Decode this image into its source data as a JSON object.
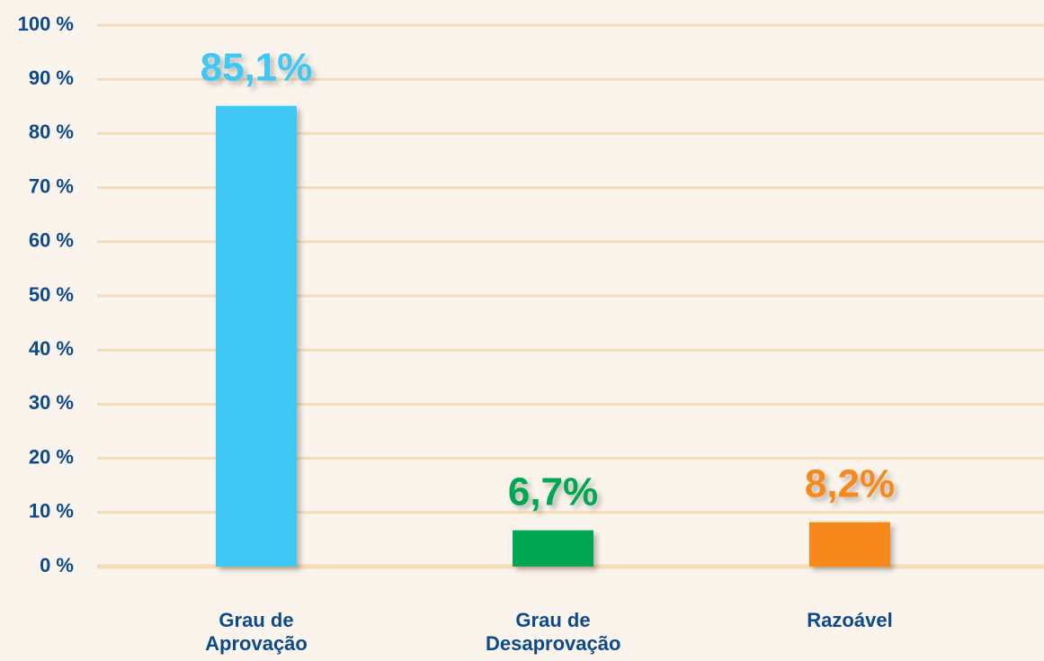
{
  "chart_data": {
    "type": "bar",
    "categories": [
      "Grau de Aprovação",
      "Grau de Desaprovação",
      "Razoável"
    ],
    "values": [
      85.1,
      6.7,
      8.2
    ],
    "value_labels": [
      "85,1%",
      "6,7%",
      "8,2%"
    ],
    "colors": [
      "#41c8f4",
      "#00a651",
      "#f7891f"
    ],
    "ylim": [
      0,
      100
    ],
    "yticks": [
      {
        "value": 0,
        "label": "0 %"
      },
      {
        "value": 10,
        "label": "10 %"
      },
      {
        "value": 20,
        "label": "20 %"
      },
      {
        "value": 30,
        "label": "30 %"
      },
      {
        "value": 40,
        "label": "40 %"
      },
      {
        "value": 50,
        "label": "50 %"
      },
      {
        "value": 60,
        "label": "60 %"
      },
      {
        "value": 70,
        "label": "70 %"
      },
      {
        "value": 80,
        "label": "80 %"
      },
      {
        "value": 90,
        "label": "90 %"
      },
      {
        "value": 100,
        "label": "100 %"
      }
    ],
    "grid": true
  }
}
